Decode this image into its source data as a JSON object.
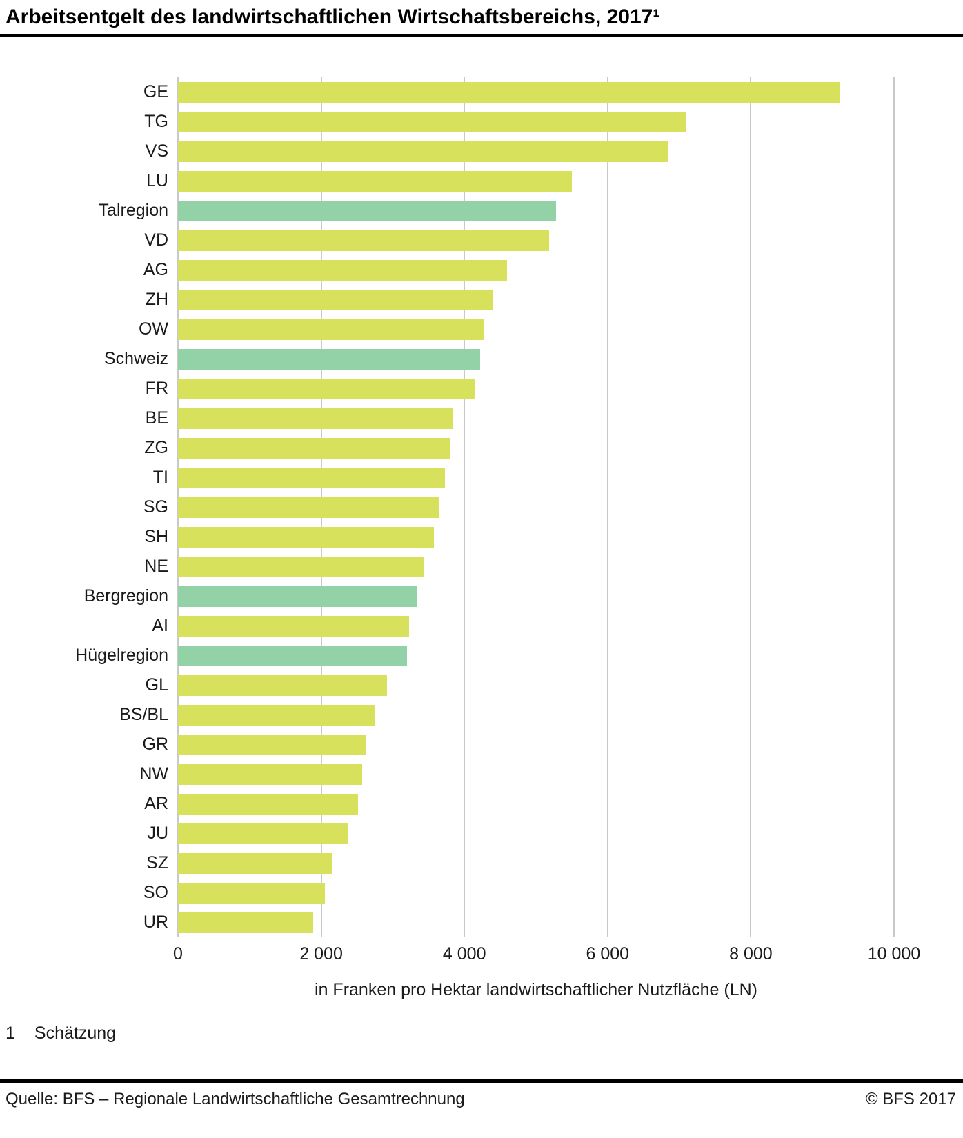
{
  "title": "Arbeitsentgelt des landwirtschaftlichen Wirtschaftsbereichs, 2017¹",
  "footnote": {
    "marker": "1",
    "text": "Schätzung"
  },
  "footer": {
    "source": "Quelle: BFS – Regionale Landwirtschaftliche Gesamtrechnung",
    "copyright": "© BFS  2017"
  },
  "chart_data": {
    "type": "bar",
    "orientation": "horizontal",
    "title": "Arbeitsentgelt des landwirtschaftlichen Wirtschaftsbereichs, 2017 (1 = Schätzung)",
    "xlabel": "in Franken pro Hektar landwirtschaftlicher Nutzfläche (LN)",
    "xlim": [
      0,
      10000
    ],
    "xticks": [
      0,
      2000,
      4000,
      6000,
      8000,
      10000
    ],
    "xtick_labels": [
      "0",
      "2 000",
      "4 000",
      "6 000",
      "8 000",
      "10 000"
    ],
    "grid": true,
    "legend": "none",
    "bar_color": "#d8e15b",
    "region_color": "#93d1a6",
    "grid_color": "#c9c9c9",
    "categories": [
      "GE",
      "TG",
      "VS",
      "LU",
      "Talregion",
      "VD",
      "AG",
      "ZH",
      "OW",
      "Schweiz",
      "FR",
      "BE",
      "ZG",
      "TI",
      "SG",
      "SH",
      "NE",
      "Bergregion",
      "AI",
      "Hügelregion",
      "GL",
      "BS/BL",
      "GR",
      "NW",
      "AR",
      "JU",
      "SZ",
      "SO",
      "UR"
    ],
    "values": [
      9250,
      7100,
      6850,
      5500,
      5280,
      5180,
      4600,
      4400,
      4280,
      4220,
      4150,
      3840,
      3800,
      3730,
      3650,
      3570,
      3430,
      3340,
      3230,
      3200,
      2920,
      2750,
      2630,
      2570,
      2510,
      2380,
      2150,
      2050,
      1890
    ],
    "highlighted_categories": [
      "Talregion",
      "Schweiz",
      "Bergregion",
      "Hügelregion"
    ]
  }
}
